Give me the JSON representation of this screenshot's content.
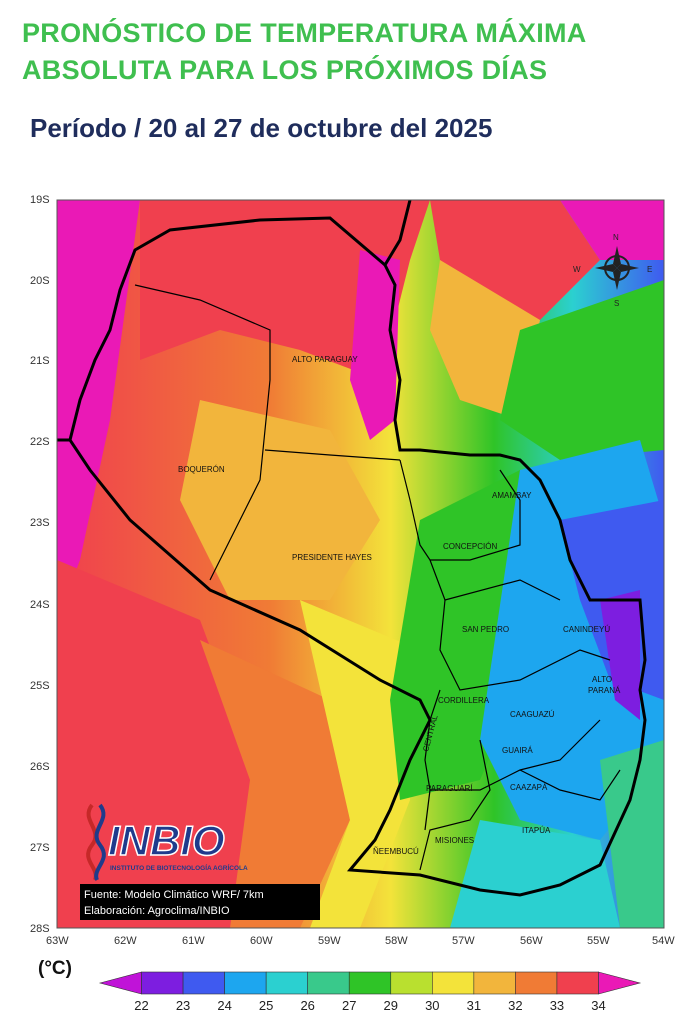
{
  "title_line1": "PRONÓSTICO DE TEMPERATURA MÁXIMA",
  "title_line2": "ABSOLUTA PARA LOS PRÓXIMOS DÍAS",
  "period": "Período /  20  al 27  de octubre del 2025",
  "lat_labels": [
    "19S",
    "20S",
    "21S",
    "22S",
    "23S",
    "24S",
    "25S",
    "26S",
    "27S",
    "28S"
  ],
  "lon_labels": [
    "63W",
    "62W",
    "61W",
    "60W",
    "59W",
    "58W",
    "57W",
    "56W",
    "55W",
    "54W"
  ],
  "departments": {
    "alto_paraguay": "ALTO PARAGUAY",
    "boqueron": "BOQUERÓN",
    "presidente_hayes": "PRESIDENTE HAYES",
    "amambay": "AMAMBAY",
    "concepcion": "CONCEPCIÓN",
    "san_pedro": "SAN PEDRO",
    "canindeyu": "CANINDEYÚ",
    "alto_parana_1": "ALTO",
    "alto_parana_2": "PARANÁ",
    "cordillera": "CORDILLERA",
    "caaguazu": "CAAGUAZÚ",
    "guaira": "GUAIRÁ",
    "central": "CENTRAL",
    "paraguari": "PARAGUARÍ",
    "caazapa": "CAAZAPÁ",
    "misiones": "MISIONES",
    "itapua": "ITAPÚA",
    "neembucu": "ÑEEMBUCÚ"
  },
  "compass": {
    "n": "N",
    "s": "S",
    "e": "E",
    "w": "W"
  },
  "logo": {
    "name": "INBIO",
    "subtitle": "INSTITUTO DE BIOTECNOLOGÍA AGRÍCOLA"
  },
  "source_line1": "Fuente: Modelo Climático WRF/ 7km",
  "source_line2": "Elaboración: Agroclima/INBIO",
  "legend": {
    "unit": "(°C)",
    "ticks": [
      "22",
      "23",
      "24",
      "25",
      "26",
      "27",
      "29",
      "30",
      "31",
      "32",
      "33",
      "34"
    ],
    "colors": [
      "#c013d8",
      "#7d1ee0",
      "#3f5af0",
      "#1da6ef",
      "#2bd0d0",
      "#39c98b",
      "#2fc427",
      "#b9e02f",
      "#f3e33a",
      "#f2b53c",
      "#f07b35",
      "#f0404e",
      "#ea19b6"
    ]
  }
}
